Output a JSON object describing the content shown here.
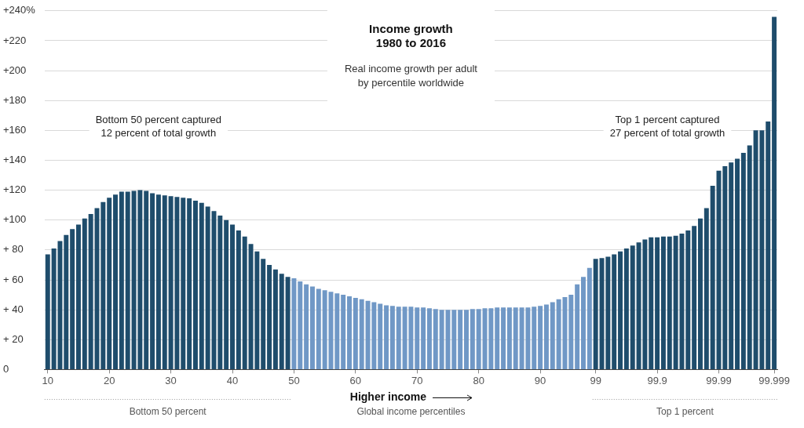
{
  "chart_data": {
    "type": "bar",
    "title": [
      "Income growth",
      "1980 to 2016"
    ],
    "subtitle": [
      "Real income growth per adult",
      "by percentile worldwide"
    ],
    "annotations": [
      {
        "text": [
          "Bottom 50 percent captured",
          "12 percent of total growth"
        ]
      },
      {
        "text": [
          "Top 1 percent captured",
          "27 percent of total growth"
        ]
      }
    ],
    "x_label": "Global income percentiles",
    "x_label_note": "Higher income",
    "x_groups": [
      "Bottom 50 percent",
      "Top 1 percent"
    ],
    "categories": [
      "10",
      null,
      null,
      null,
      null,
      null,
      null,
      null,
      null,
      null,
      "20",
      null,
      null,
      null,
      null,
      null,
      null,
      null,
      null,
      null,
      "30",
      null,
      null,
      null,
      null,
      null,
      null,
      null,
      null,
      null,
      "40",
      null,
      null,
      null,
      null,
      null,
      null,
      null,
      null,
      null,
      "50",
      null,
      null,
      null,
      null,
      null,
      null,
      null,
      null,
      null,
      "60",
      null,
      null,
      null,
      null,
      null,
      null,
      null,
      null,
      null,
      "70",
      null,
      null,
      null,
      null,
      null,
      null,
      null,
      null,
      null,
      "80",
      null,
      null,
      null,
      null,
      null,
      null,
      null,
      null,
      null,
      "90",
      null,
      null,
      null,
      null,
      null,
      null,
      null,
      null,
      "99",
      null,
      null,
      null,
      null,
      null,
      null,
      null,
      null,
      null,
      "99.9",
      null,
      null,
      null,
      null,
      null,
      null,
      null,
      null,
      null,
      "99.99",
      null,
      null,
      null,
      null,
      null,
      null,
      null,
      null,
      "99.999"
    ],
    "values": [
      77,
      81,
      86,
      90,
      94,
      97,
      101,
      104,
      108,
      112,
      115,
      117,
      119,
      119,
      119.5,
      120,
      119.5,
      118,
      117,
      116.5,
      116,
      115.5,
      115,
      114.5,
      113,
      111.5,
      109,
      106,
      103,
      100,
      97,
      93,
      89,
      84,
      79,
      74,
      70,
      67,
      64,
      62,
      61,
      59,
      57,
      55.5,
      54,
      53,
      52,
      51,
      50,
      49,
      48,
      47,
      46,
      45,
      44,
      43,
      42.5,
      42,
      42,
      42,
      41.5,
      41.5,
      41,
      40.5,
      40,
      40,
      40,
      40,
      40,
      40.5,
      40.5,
      41,
      41,
      41.5,
      41.5,
      41.5,
      41.5,
      41.5,
      41.5,
      42,
      42.5,
      43.5,
      45,
      47,
      48.5,
      50,
      57,
      62,
      68,
      74,
      74.5,
      75.5,
      77,
      79,
      81,
      83,
      85,
      87,
      88.5,
      88.5,
      89,
      89,
      89.5,
      91,
      93,
      96,
      101,
      108,
      123,
      133,
      136,
      138.5,
      141,
      145,
      150,
      160,
      160,
      166,
      236
    ],
    "colors": [
      "#1f4d6c",
      "#1f4d6c",
      "#1f4d6c",
      "#1f4d6c",
      "#1f4d6c",
      "#1f4d6c",
      "#1f4d6c",
      "#1f4d6c",
      "#1f4d6c",
      "#1f4d6c",
      "#1f4d6c",
      "#1f4d6c",
      "#1f4d6c",
      "#1f4d6c",
      "#1f4d6c",
      "#1f4d6c",
      "#1f4d6c",
      "#1f4d6c",
      "#1f4d6c",
      "#1f4d6c",
      "#1f4d6c",
      "#1f4d6c",
      "#1f4d6c",
      "#1f4d6c",
      "#1f4d6c",
      "#1f4d6c",
      "#1f4d6c",
      "#1f4d6c",
      "#1f4d6c",
      "#1f4d6c",
      "#1f4d6c",
      "#1f4d6c",
      "#1f4d6c",
      "#1f4d6c",
      "#1f4d6c",
      "#1f4d6c",
      "#1f4d6c",
      "#1f4d6c",
      "#1f4d6c",
      "#1f4d6c",
      "#7098c6",
      "#7098c6",
      "#7098c6",
      "#7098c6",
      "#7098c6",
      "#7098c6",
      "#7098c6",
      "#7098c6",
      "#7098c6",
      "#7098c6",
      "#7098c6",
      "#7098c6",
      "#7098c6",
      "#7098c6",
      "#7098c6",
      "#7098c6",
      "#7098c6",
      "#7098c6",
      "#7098c6",
      "#7098c6",
      "#7098c6",
      "#7098c6",
      "#7098c6",
      "#7098c6",
      "#7098c6",
      "#7098c6",
      "#7098c6",
      "#7098c6",
      "#7098c6",
      "#7098c6",
      "#7098c6",
      "#7098c6",
      "#7098c6",
      "#7098c6",
      "#7098c6",
      "#7098c6",
      "#7098c6",
      "#7098c6",
      "#7098c6",
      "#7098c6",
      "#7098c6",
      "#7098c6",
      "#7098c6",
      "#7098c6",
      "#7098c6",
      "#7098c6",
      "#7098c6",
      "#7098c6",
      "#7098c6",
      "#1f4d6c",
      "#1f4d6c",
      "#1f4d6c",
      "#1f4d6c",
      "#1f4d6c",
      "#1f4d6c",
      "#1f4d6c",
      "#1f4d6c",
      "#1f4d6c",
      "#1f4d6c",
      "#1f4d6c",
      "#1f4d6c",
      "#1f4d6c",
      "#1f4d6c",
      "#1f4d6c",
      "#1f4d6c",
      "#1f4d6c",
      "#1f4d6c",
      "#1f4d6c",
      "#1f4d6c",
      "#1f4d6c",
      "#1f4d6c",
      "#1f4d6c",
      "#1f4d6c",
      "#1f4d6c",
      "#1f4d6c",
      "#1f4d6c",
      "#1f4d6c",
      "#1f4d6c",
      "#1f4d6c"
    ],
    "ylim": [
      0,
      240
    ],
    "yticks": [
      0,
      {
        "value": 20,
        "label": "+ 20"
      },
      {
        "value": 40,
        "label": "+ 40"
      },
      {
        "value": 60,
        "label": "+ 60"
      },
      {
        "value": 80,
        "label": "+ 80"
      },
      {
        "value": 100,
        "label": "+100"
      },
      {
        "value": 120,
        "label": "+120"
      },
      {
        "value": 140,
        "label": "+140"
      },
      {
        "value": 160,
        "label": "+160"
      },
      {
        "value": 180,
        "label": "+180"
      },
      {
        "value": 200,
        "label": "+200"
      },
      {
        "value": 220,
        "label": "+220"
      },
      {
        "value": 240,
        "label": "+240%"
      }
    ],
    "grid": true
  }
}
